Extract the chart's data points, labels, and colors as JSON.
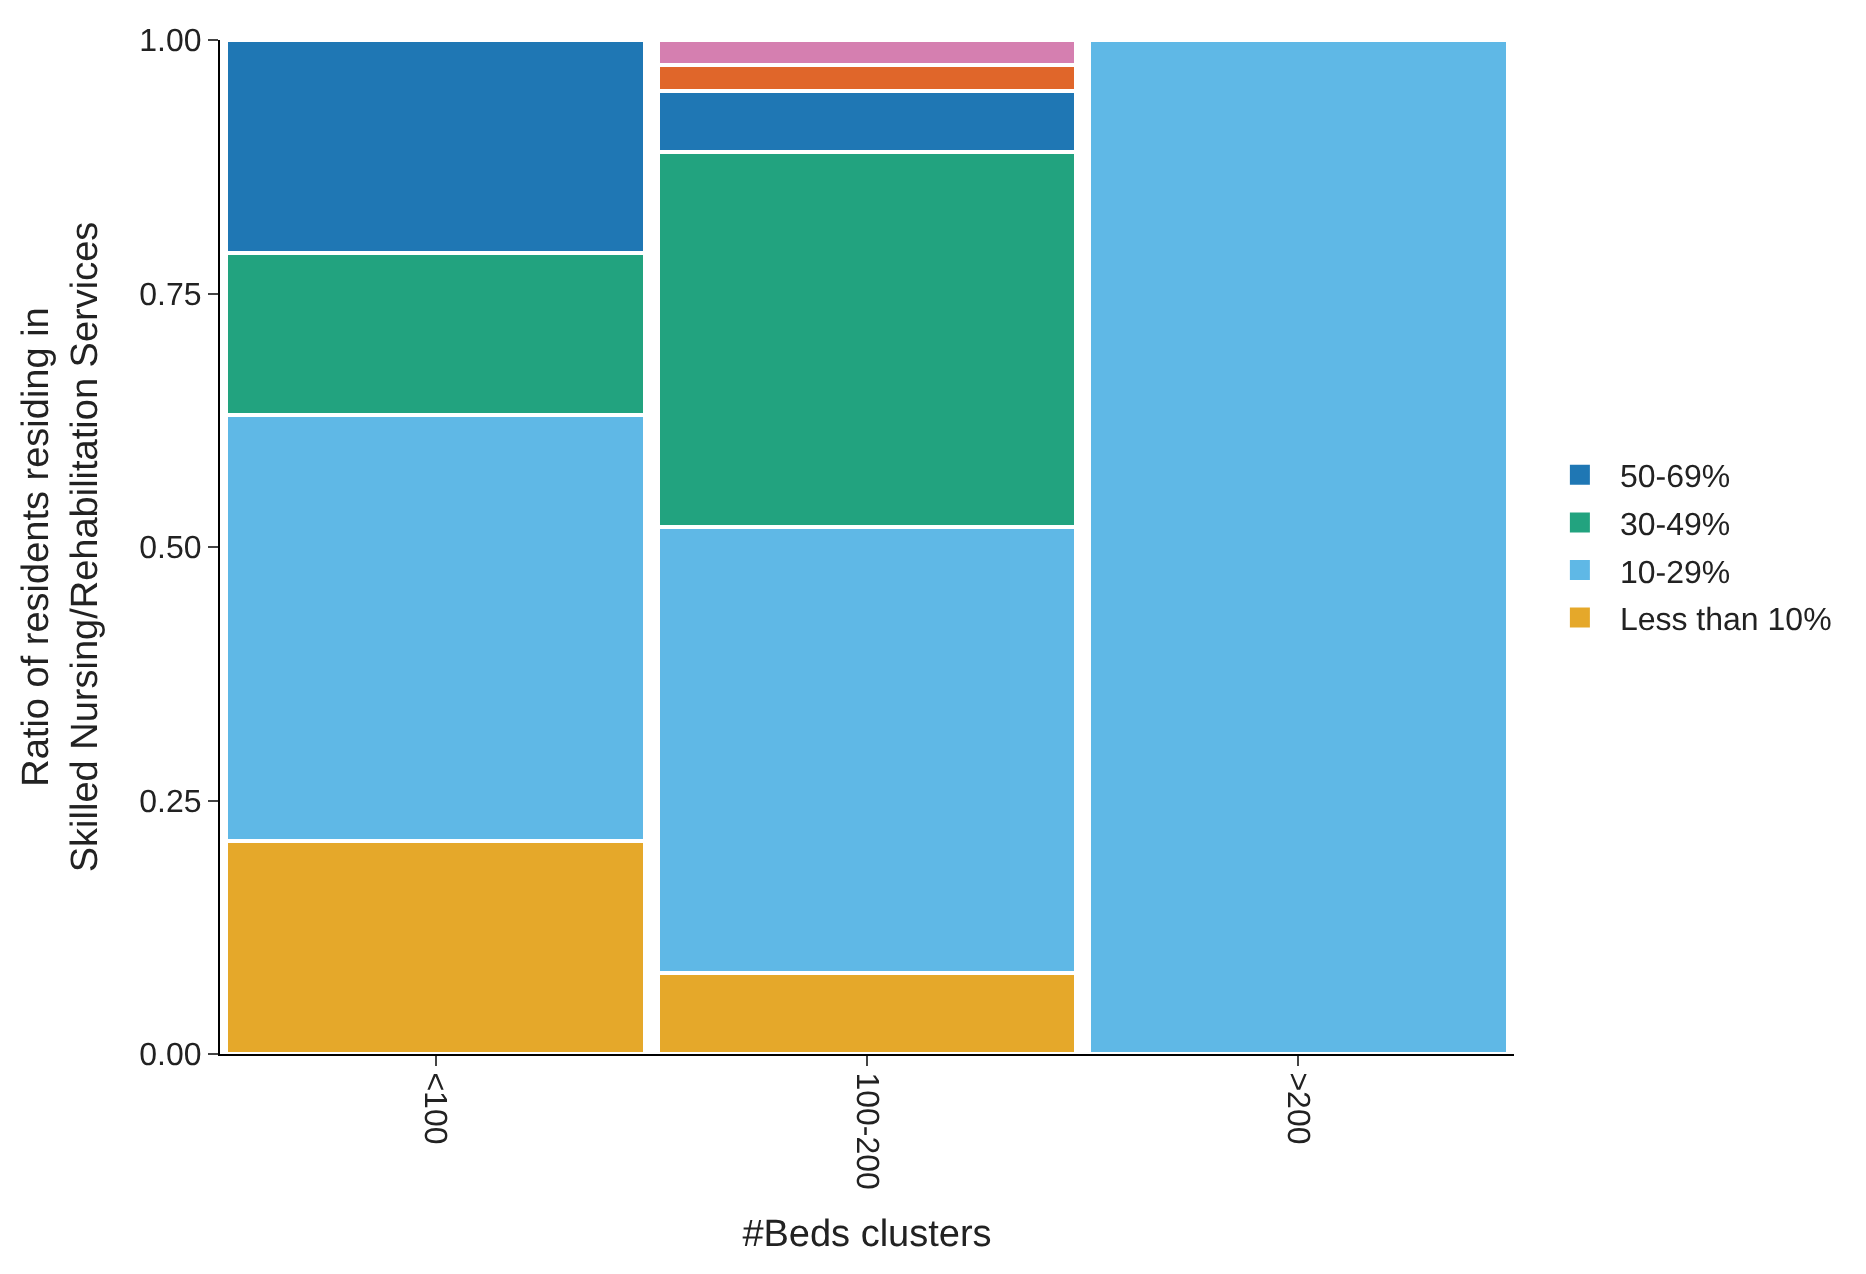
{
  "chart_data": {
    "type": "bar",
    "stacked": true,
    "xlabel": "#Beds clusters",
    "ylabel": "Ratio of residents residing in\nSkilled Nursing/Rehabilitation Services",
    "categories": [
      "<100",
      "100-200",
      ">200"
    ],
    "series": [
      {
        "name": "Less than 10%",
        "color": "#e5a82a",
        "values": [
          0.21,
          0.08,
          null
        ]
      },
      {
        "name": "10-29%",
        "color": "#5fb8e6",
        "values": [
          0.42,
          0.44,
          1.0
        ]
      },
      {
        "name": "30-49%",
        "color": "#22a37f",
        "values": [
          0.16,
          0.37,
          null
        ]
      },
      {
        "name": "50-69%",
        "color": "#1f77b4",
        "values": [
          0.21,
          0.06,
          null
        ]
      },
      {
        "color": "#e0662a",
        "values": [
          null,
          0.025,
          null
        ]
      },
      {
        "color": "#d57fb0",
        "values": [
          null,
          0.025,
          null
        ]
      }
    ],
    "ylim": [
      0,
      1
    ],
    "yticks": [
      {
        "value": 0,
        "label": "0.00"
      },
      {
        "value": 0.25,
        "label": "0.25"
      },
      {
        "value": 0.5,
        "label": "0.50"
      },
      {
        "value": 0.75,
        "label": "0.75"
      },
      {
        "value": 1,
        "label": "1.00"
      }
    ],
    "legend": "right"
  }
}
